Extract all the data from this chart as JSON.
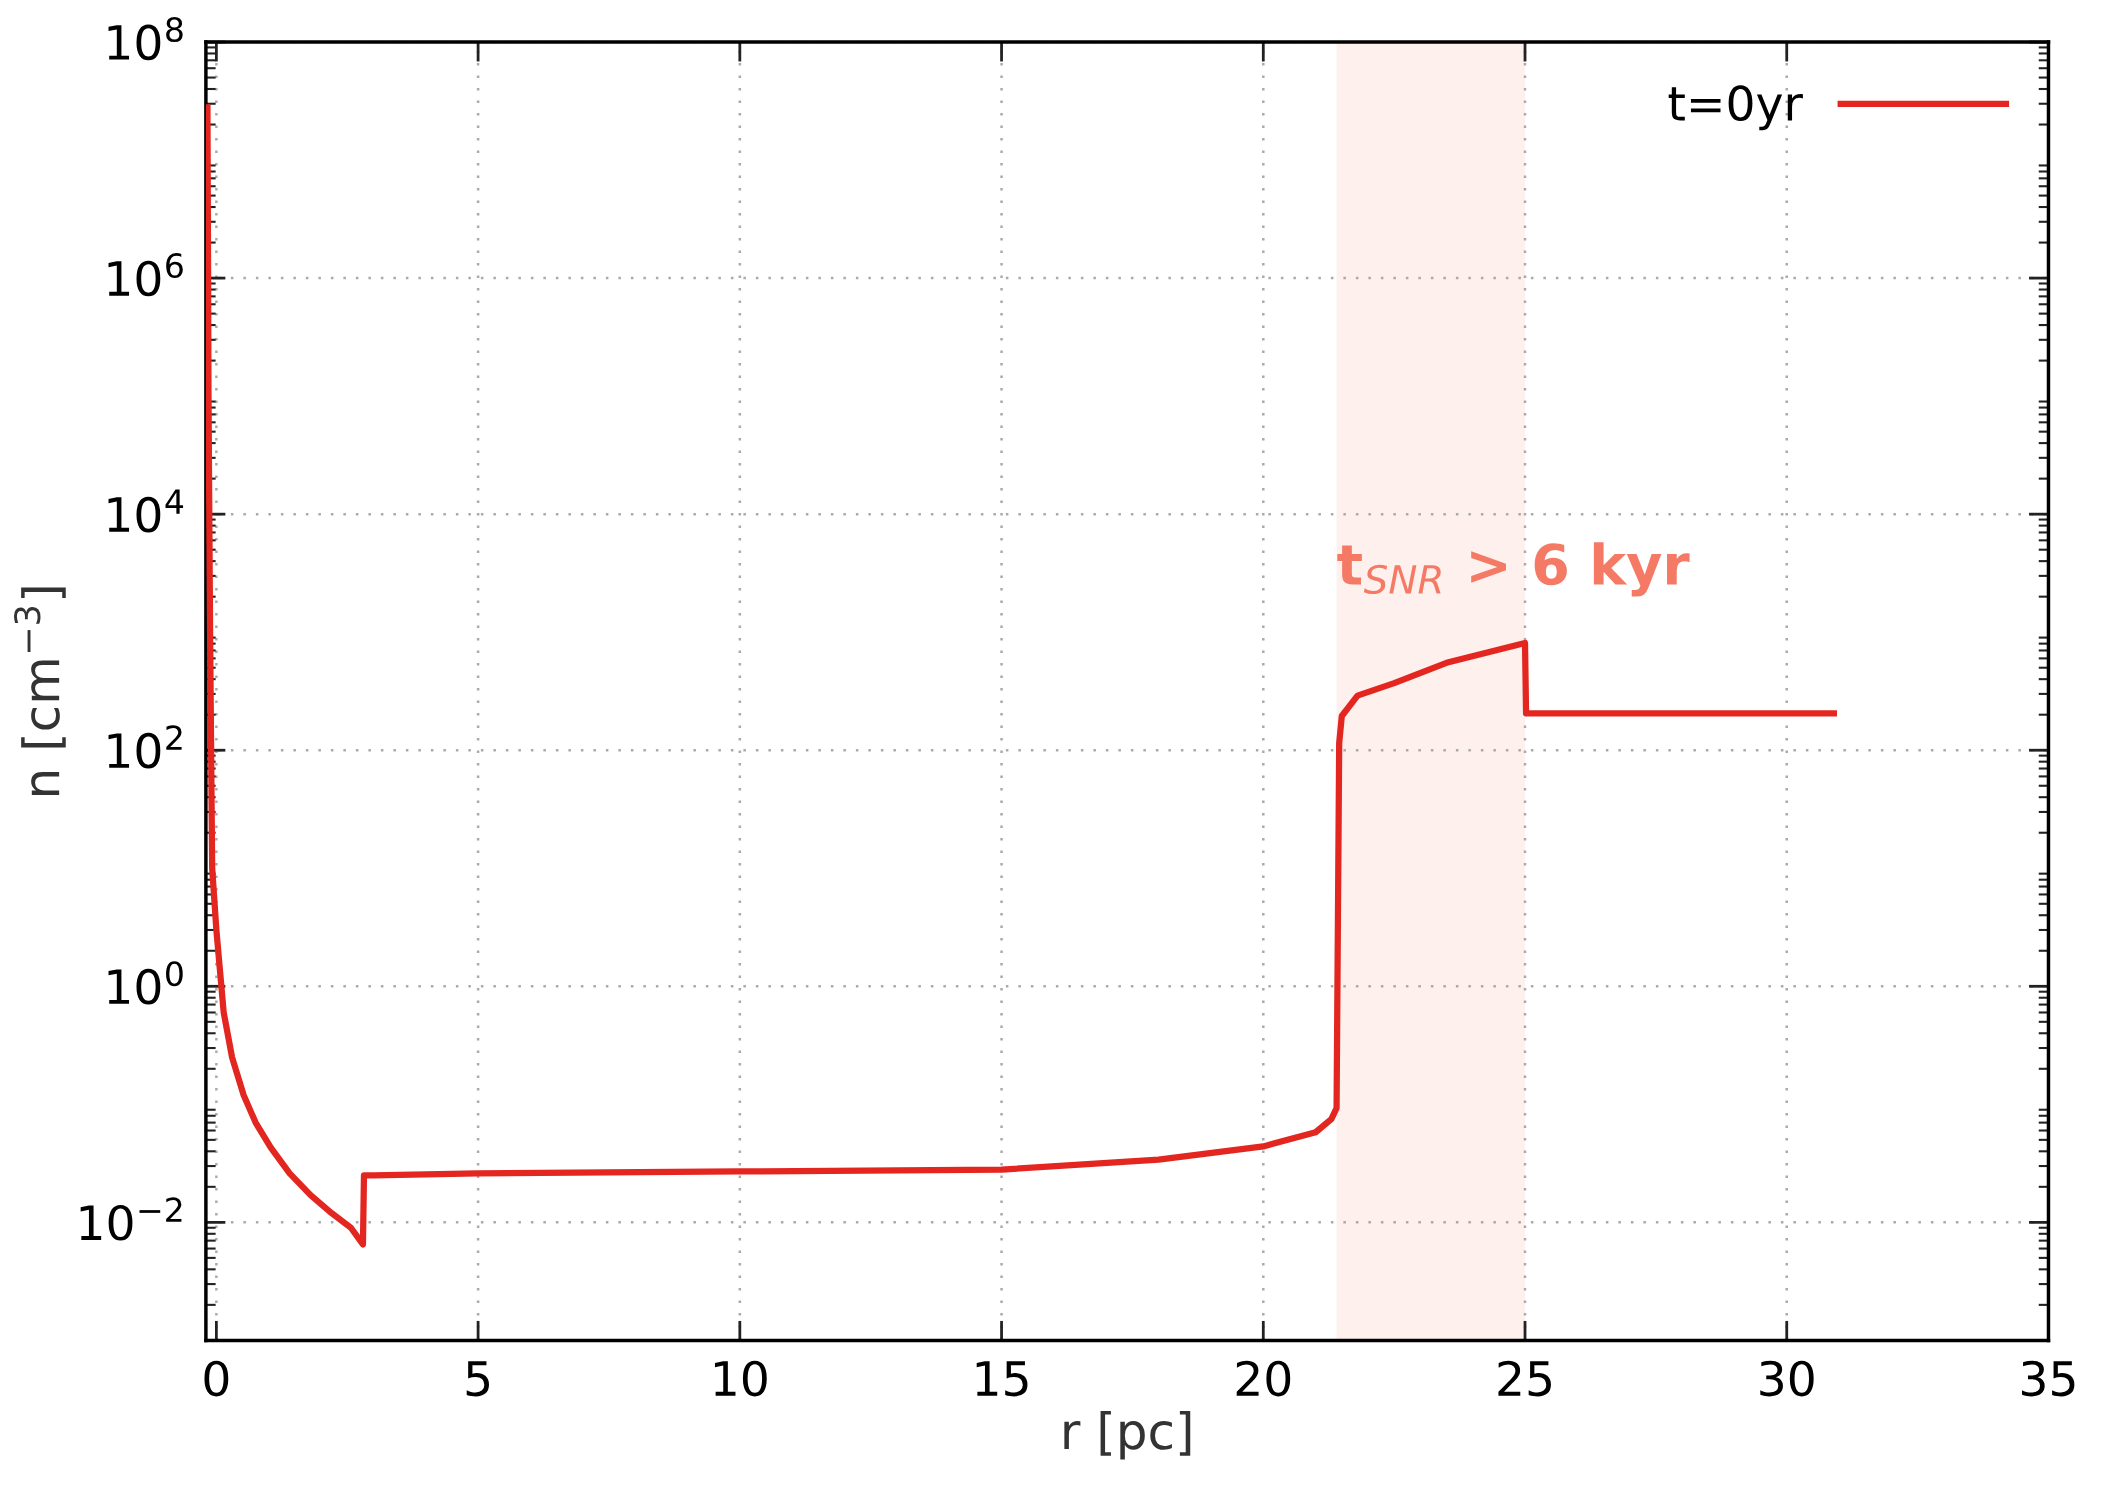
{
  "chart_data": {
    "type": "line",
    "xlabel": "r [pc]",
    "ylabel": "n [cm$^{−3}$]",
    "series": [
      {
        "name": "t=0yr",
        "color": "#e3261f",
        "x": [
          -0.17,
          -0.15,
          -0.12,
          -0.08,
          0.0,
          0.14,
          0.3,
          0.52,
          0.75,
          1.04,
          1.4,
          1.8,
          2.2,
          2.57,
          2.8,
          2.82,
          3.0,
          5.0,
          10.0,
          15.0,
          18.0,
          20.0,
          21.0,
          21.3,
          21.4,
          21.45,
          21.5,
          21.8,
          22.5,
          23.5,
          25.0,
          25.02,
          30.9
        ],
        "values": [
          28000000.0,
          100000.0,
          1000.0,
          10.0,
          3.0,
          0.6,
          0.25,
          0.12,
          0.07,
          0.043,
          0.026,
          0.017,
          0.012,
          0.009,
          0.0065,
          0.025,
          0.025,
          0.026,
          0.027,
          0.028,
          0.034,
          0.044,
          0.058,
          0.075,
          0.093,
          115,
          195,
          290,
          370,
          550,
          810,
          205,
          205
        ]
      }
    ],
    "xlim": [
      -0.2,
      35
    ],
    "xticks": [
      0,
      5,
      10,
      15,
      20,
      25,
      30,
      35
    ],
    "log": "y",
    "ylim": [
      0.001,
      100000000.0
    ],
    "yticks": [
      {
        "value": 0.01,
        "label": "10$^{−2}$"
      },
      {
        "value": 1,
        "label": "10$^{0}$"
      },
      {
        "value": 100,
        "label": "10$^{2}$"
      },
      {
        "value": 10000,
        "label": "10$^{4}$"
      },
      {
        "value": 1000000,
        "label": "10$^{6}$"
      },
      {
        "value": 100000000,
        "label": "10$^{8}$"
      }
    ],
    "grid": true,
    "legend": "top right",
    "line_style": "solid",
    "marker": "none",
    "bands": [
      {
        "axis": "x",
        "from": 21.4,
        "to": 25,
        "label": "t$_{SNR}$ > 6 kyr",
        "color": "#fdf0ed"
      }
    ]
  }
}
